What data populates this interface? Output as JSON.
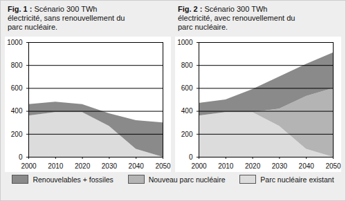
{
  "chart_data": [
    {
      "type": "area",
      "title": "Fig. 1 : Scénario 300 TWh électricité, sans renouvellement du parc nucléaire.",
      "x": [
        2000,
        2010,
        2020,
        2030,
        2040,
        2050
      ],
      "series": [
        {
          "name": "Parc nucléaire existant",
          "color": "#dcdcdc",
          "values": [
            360,
            390,
            390,
            270,
            70,
            0
          ]
        },
        {
          "name": "Nouveau parc nucléaire",
          "color": "#b4b4b4",
          "values": [
            0,
            0,
            0,
            0,
            0,
            0
          ]
        },
        {
          "name": "Renouvelables + fossiles",
          "color": "#8a8a8a",
          "values": [
            100,
            90,
            70,
            110,
            250,
            300
          ]
        }
      ],
      "xlim": [
        2000,
        2050
      ],
      "xticks": [
        2000,
        2010,
        2020,
        2030,
        2040,
        2050
      ],
      "ylim": [
        0,
        1000
      ],
      "yticks": [
        0,
        200,
        400,
        600,
        800,
        1000
      ],
      "grid": true,
      "stacked": true,
      "legend": "bottom"
    },
    {
      "type": "area",
      "title": "Fig. 2 : Scénario 300 TWh électricité, avec renouvellement du parc nucléaire.",
      "x": [
        2000,
        2010,
        2020,
        2030,
        2040,
        2050
      ],
      "series": [
        {
          "name": "Parc nucléaire existant",
          "color": "#dcdcdc",
          "values": [
            360,
            390,
            390,
            270,
            70,
            0
          ]
        },
        {
          "name": "Nouveau parc nucléaire",
          "color": "#b4b4b4",
          "values": [
            0,
            0,
            0,
            150,
            460,
            600
          ]
        },
        {
          "name": "Renouvelables + fossiles",
          "color": "#8a8a8a",
          "values": [
            110,
            110,
            200,
            280,
            280,
            310
          ]
        }
      ],
      "xlim": [
        2000,
        2050
      ],
      "xticks": [
        2000,
        2010,
        2020,
        2030,
        2040,
        2050
      ],
      "ylim": [
        0,
        1000
      ],
      "yticks": [
        0,
        200,
        400,
        600,
        800,
        1000
      ],
      "grid": true,
      "stacked": true,
      "legend": "bottom"
    }
  ]
}
